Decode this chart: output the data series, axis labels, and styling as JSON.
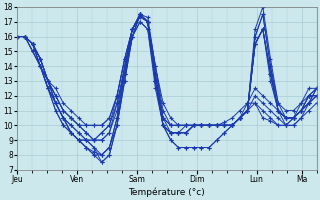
{
  "title": "Température (°c)",
  "bg_color": "#cce8ec",
  "grid_color": "#aaccd4",
  "line_color": "#1a3aad",
  "ylim": [
    7,
    18
  ],
  "yticks": [
    7,
    8,
    9,
    10,
    11,
    12,
    13,
    14,
    15,
    16,
    17,
    18
  ],
  "xtick_labels": [
    "Jeu",
    "Ven",
    "Sam",
    "Dim",
    "Lun",
    "Ma"
  ],
  "xtick_positions": [
    0,
    8,
    16,
    24,
    32,
    38
  ],
  "xlim": [
    0,
    40
  ],
  "series": [
    [
      16.0,
      16.0,
      15.5,
      14.5,
      13.0,
      12.5,
      11.5,
      11.0,
      10.5,
      10.0,
      10.0,
      10.0,
      10.5,
      12.0,
      14.5,
      16.5,
      17.3,
      17.0,
      14.0,
      11.5,
      10.5,
      10.0,
      10.0,
      10.0,
      10.0,
      10.0,
      10.0,
      10.2,
      10.5,
      11.0,
      11.5,
      11.5,
      10.5,
      10.3,
      10.0,
      10.0,
      10.5,
      11.5,
      12.5,
      12.5
    ],
    [
      16.0,
      16.0,
      15.5,
      14.5,
      13.0,
      11.5,
      10.5,
      9.5,
      9.0,
      8.5,
      8.2,
      8.0,
      8.5,
      10.0,
      13.0,
      16.0,
      17.5,
      17.3,
      14.0,
      10.5,
      9.5,
      9.5,
      9.5,
      10.0,
      10.0,
      10.0,
      10.0,
      10.0,
      10.0,
      10.5,
      11.0,
      12.0,
      11.5,
      11.0,
      10.5,
      10.0,
      10.0,
      10.5,
      11.5,
      12.5
    ],
    [
      16.0,
      16.0,
      15.5,
      14.0,
      12.5,
      11.0,
      10.0,
      9.5,
      9.0,
      9.0,
      9.0,
      9.5,
      10.0,
      11.5,
      13.5,
      16.0,
      17.5,
      17.0,
      13.5,
      10.0,
      9.5,
      9.5,
      9.5,
      10.0,
      10.0,
      10.0,
      10.0,
      10.0,
      10.0,
      10.5,
      11.0,
      11.5,
      11.0,
      10.5,
      10.0,
      10.0,
      10.0,
      10.5,
      11.0,
      11.5
    ],
    [
      16.0,
      16.0,
      15.0,
      14.0,
      12.5,
      11.5,
      10.5,
      10.0,
      9.5,
      9.0,
      8.5,
      8.0,
      8.5,
      10.5,
      14.0,
      16.5,
      17.5,
      17.0,
      13.0,
      10.0,
      9.0,
      8.5,
      8.5,
      8.5,
      8.5,
      8.5,
      9.0,
      9.5,
      10.0,
      10.5,
      11.5,
      12.5,
      12.0,
      11.5,
      11.0,
      10.5,
      10.5,
      11.0,
      12.0,
      12.0
    ],
    [
      16.0,
      16.0,
      15.5,
      14.5,
      13.0,
      12.0,
      11.0,
      10.5,
      10.0,
      10.0,
      10.0,
      10.0,
      10.5,
      12.0,
      14.5,
      16.5,
      17.5,
      17.0,
      14.0,
      11.0,
      10.0,
      10.0,
      10.0,
      10.0,
      10.0,
      10.0,
      10.0,
      10.0,
      10.0,
      10.5,
      11.0,
      16.5,
      18.0,
      14.5,
      11.5,
      10.5,
      10.5,
      11.0,
      12.0,
      12.0
    ],
    [
      16.0,
      16.0,
      15.5,
      14.5,
      13.0,
      11.5,
      10.5,
      9.5,
      9.0,
      8.5,
      8.0,
      7.5,
      8.0,
      10.0,
      13.5,
      16.5,
      17.5,
      17.0,
      13.0,
      10.0,
      9.0,
      8.5,
      8.5,
      8.5,
      8.5,
      8.5,
      9.0,
      9.5,
      10.0,
      10.5,
      11.0,
      16.0,
      17.5,
      14.0,
      11.0,
      10.0,
      10.5,
      11.0,
      12.0,
      12.5
    ],
    [
      16.0,
      16.0,
      15.5,
      14.0,
      12.5,
      11.5,
      10.5,
      10.0,
      9.5,
      9.0,
      8.5,
      7.5,
      8.0,
      10.0,
      13.0,
      16.0,
      17.0,
      16.5,
      12.5,
      10.0,
      9.5,
      9.5,
      10.0,
      10.0,
      10.0,
      10.0,
      10.0,
      10.0,
      10.0,
      10.5,
      11.0,
      15.5,
      16.5,
      13.5,
      11.0,
      10.5,
      10.5,
      11.0,
      11.5,
      12.0
    ],
    [
      16.0,
      16.0,
      15.0,
      14.0,
      13.0,
      12.0,
      11.0,
      10.5,
      10.0,
      9.5,
      9.0,
      9.0,
      9.5,
      11.5,
      14.0,
      16.0,
      17.0,
      16.5,
      13.0,
      10.5,
      10.0,
      10.0,
      10.0,
      10.0,
      10.0,
      10.0,
      10.0,
      10.0,
      10.0,
      10.5,
      11.0,
      15.5,
      16.5,
      13.5,
      11.0,
      10.5,
      10.5,
      11.0,
      11.5,
      12.0
    ],
    [
      16.0,
      16.0,
      15.0,
      14.0,
      13.0,
      12.0,
      11.0,
      10.5,
      10.0,
      9.5,
      9.0,
      9.0,
      9.5,
      11.0,
      14.0,
      16.5,
      17.5,
      17.0,
      13.5,
      10.5,
      10.0,
      10.0,
      10.0,
      10.0,
      10.0,
      10.0,
      10.0,
      10.0,
      10.0,
      10.5,
      11.0,
      16.0,
      17.5,
      14.0,
      11.5,
      11.0,
      11.0,
      11.5,
      12.0,
      12.5
    ],
    [
      16.0,
      16.0,
      15.5,
      14.0,
      12.5,
      11.0,
      10.0,
      9.5,
      9.0,
      9.0,
      9.0,
      9.5,
      10.0,
      12.0,
      14.5,
      16.5,
      17.5,
      17.0,
      13.0,
      10.0,
      9.5,
      9.5,
      9.5,
      10.0,
      10.0,
      10.0,
      10.0,
      10.0,
      10.0,
      10.5,
      11.0,
      15.5,
      16.5,
      13.0,
      11.0,
      10.5,
      10.5,
      11.0,
      11.5,
      12.0
    ],
    [
      16.0,
      16.0,
      15.5,
      14.5,
      13.0,
      11.5,
      10.5,
      9.5,
      9.0,
      8.5,
      8.0,
      8.0,
      8.5,
      10.5,
      13.5,
      16.0,
      17.5,
      17.0,
      13.0,
      10.0,
      9.5,
      9.5,
      9.5,
      10.0,
      10.0,
      10.0,
      10.0,
      10.0,
      10.0,
      10.5,
      11.0,
      15.5,
      16.5,
      13.5,
      11.0,
      10.5,
      10.5,
      11.0,
      11.5,
      12.5
    ]
  ]
}
